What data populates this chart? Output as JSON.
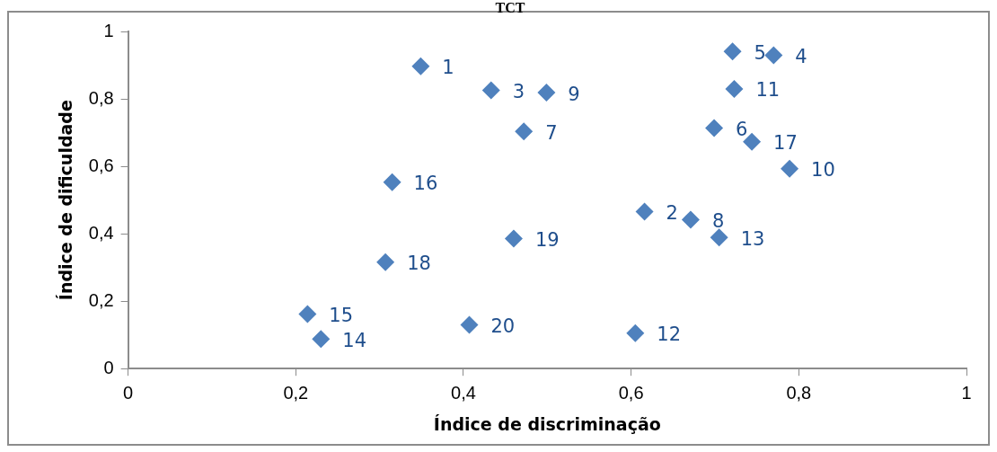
{
  "chart_data": {
    "type": "scatter",
    "title": "TCT",
    "xlabel": "Índice de discriminação",
    "ylabel": "Índice de dificuldade",
    "series": [
      {
        "name": "1",
        "color": "#4f81bd",
        "x": [
          0.349
        ],
        "values": [
          0.897
        ]
      },
      {
        "name": "2",
        "color": "#4f81bd",
        "x": [
          0.616
        ],
        "values": [
          0.466
        ]
      },
      {
        "name": "3",
        "color": "#4f81bd",
        "x": [
          0.433
        ],
        "values": [
          0.826
        ]
      },
      {
        "name": "4",
        "color": "#4f81bd",
        "x": [
          0.77
        ],
        "values": [
          0.93
        ]
      },
      {
        "name": "5",
        "color": "#4f81bd",
        "x": [
          0.721
        ],
        "values": [
          0.941
        ]
      },
      {
        "name": "6",
        "color": "#4f81bd",
        "x": [
          0.699
        ],
        "values": [
          0.714
        ]
      },
      {
        "name": "7",
        "color": "#4f81bd",
        "x": [
          0.472
        ],
        "values": [
          0.704
        ]
      },
      {
        "name": "8",
        "color": "#4f81bd",
        "x": [
          0.671
        ],
        "values": [
          0.442
        ]
      },
      {
        "name": "9",
        "color": "#4f81bd",
        "x": [
          0.499
        ],
        "values": [
          0.819
        ]
      },
      {
        "name": "10",
        "color": "#4f81bd",
        "x": [
          0.789
        ],
        "values": [
          0.593
        ]
      },
      {
        "name": "11",
        "color": "#4f81bd",
        "x": [
          0.723
        ],
        "values": [
          0.83
        ]
      },
      {
        "name": "12",
        "color": "#4f81bd",
        "x": [
          0.605
        ],
        "values": [
          0.105
        ]
      },
      {
        "name": "13",
        "color": "#4f81bd",
        "x": [
          0.705
        ],
        "values": [
          0.389
        ]
      },
      {
        "name": "14",
        "color": "#4f81bd",
        "x": [
          0.23
        ],
        "values": [
          0.088
        ]
      },
      {
        "name": "15",
        "color": "#4f81bd",
        "x": [
          0.214
        ],
        "values": [
          0.162
        ]
      },
      {
        "name": "16",
        "color": "#4f81bd",
        "x": [
          0.315
        ],
        "values": [
          0.553
        ]
      },
      {
        "name": "17",
        "color": "#4f81bd",
        "x": [
          0.744
        ],
        "values": [
          0.673
        ]
      },
      {
        "name": "18",
        "color": "#4f81bd",
        "x": [
          0.307
        ],
        "values": [
          0.316
        ]
      },
      {
        "name": "19",
        "color": "#4f81bd",
        "x": [
          0.46
        ],
        "values": [
          0.386
        ]
      },
      {
        "name": "20",
        "color": "#4f81bd",
        "x": [
          0.407
        ],
        "values": [
          0.13
        ]
      }
    ],
    "xlim": [
      0,
      1
    ],
    "xticks": [
      0,
      {
        "value": 0.2,
        "label": "0,2"
      },
      {
        "value": 0.4,
        "label": "0,4"
      },
      {
        "value": 0.6,
        "label": "0,6"
      },
      {
        "value": 0.8,
        "label": "0,8"
      },
      1
    ],
    "ylim": [
      0,
      1
    ],
    "yticks": [
      0,
      {
        "value": 0.2,
        "label": "0,2"
      },
      {
        "value": 0.4,
        "label": "0,4"
      },
      {
        "value": 0.6,
        "label": "0,6"
      },
      {
        "value": 0.8,
        "label": "0,8"
      },
      1
    ],
    "marker": "diamond",
    "grid": false,
    "legend": false
  }
}
